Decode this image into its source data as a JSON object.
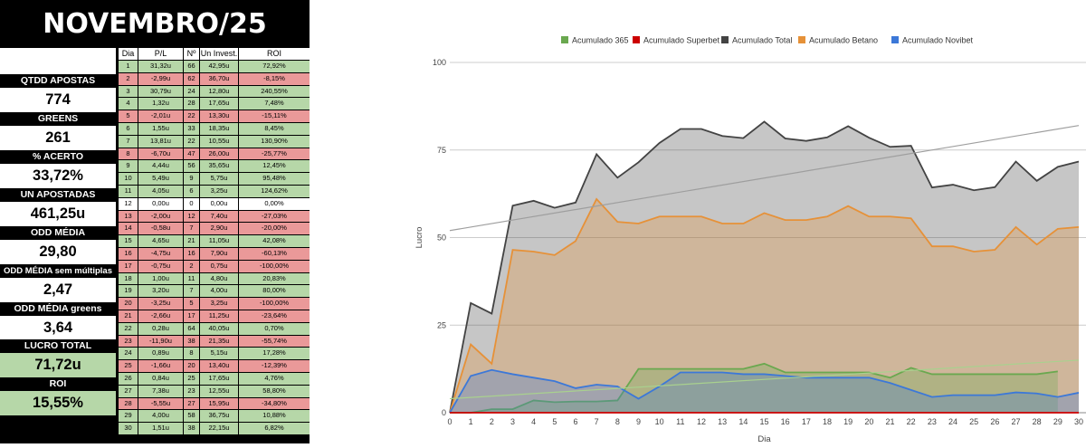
{
  "title": "NOVEMBRO/25",
  "stats": [
    {
      "label": "",
      "value": ""
    },
    {
      "label": "QTDD APOSTAS",
      "value": "774"
    },
    {
      "label": "GREENS",
      "value": "261"
    },
    {
      "label": "% ACERTO",
      "value": "33,72%"
    },
    {
      "label": "UN APOSTADAS",
      "value": "461,25u"
    },
    {
      "label": "ODD MÉDIA",
      "value": "29,80"
    },
    {
      "label": "ODD MÉDIA sem múltiplas",
      "value": "2,47"
    },
    {
      "label": "ODD MÉDIA greens",
      "value": "3,64"
    },
    {
      "label": "LUCRO TOTAL",
      "value": "71,72u"
    },
    {
      "label": "ROI",
      "value": "15,55%"
    }
  ],
  "table": {
    "headers": [
      "Dia",
      "P/L",
      "Nº",
      "Un Invest.",
      "ROI"
    ],
    "rows": [
      [
        "1",
        "31,32u",
        "66",
        "42,95u",
        "72,92%"
      ],
      [
        "2",
        "-2,99u",
        "62",
        "36,70u",
        "-8,15%"
      ],
      [
        "3",
        "30,79u",
        "24",
        "12,80u",
        "240,55%"
      ],
      [
        "4",
        "1,32u",
        "28",
        "17,65u",
        "7,48%"
      ],
      [
        "5",
        "-2,01u",
        "22",
        "13,30u",
        "-15,11%"
      ],
      [
        "6",
        "1,55u",
        "33",
        "18,35u",
        "8,45%"
      ],
      [
        "7",
        "13,81u",
        "22",
        "10,55u",
        "130,90%"
      ],
      [
        "8",
        "-6,70u",
        "47",
        "26,00u",
        "-25,77%"
      ],
      [
        "9",
        "4,44u",
        "56",
        "35,65u",
        "12,45%"
      ],
      [
        "10",
        "5,49u",
        "9",
        "5,75u",
        "95,48%"
      ],
      [
        "11",
        "4,05u",
        "6",
        "3,25u",
        "124,62%"
      ],
      [
        "12",
        "0,00u",
        "0",
        "0,00u",
        "0,00%"
      ],
      [
        "13",
        "-2,00u",
        "12",
        "7,40u",
        "-27,03%"
      ],
      [
        "14",
        "-0,58u",
        "7",
        "2,90u",
        "-20,00%"
      ],
      [
        "15",
        "4,65u",
        "21",
        "11,05u",
        "42,08%"
      ],
      [
        "16",
        "-4,75u",
        "16",
        "7,90u",
        "-60,13%"
      ],
      [
        "17",
        "-0,75u",
        "2",
        "0,75u",
        "-100,00%"
      ],
      [
        "18",
        "1,00u",
        "11",
        "4,80u",
        "20,83%"
      ],
      [
        "19",
        "3,20u",
        "7",
        "4,00u",
        "80,00%"
      ],
      [
        "20",
        "-3,25u",
        "5",
        "3,25u",
        "-100,00%"
      ],
      [
        "21",
        "-2,66u",
        "17",
        "11,25u",
        "-23,64%"
      ],
      [
        "22",
        "0,28u",
        "64",
        "40,05u",
        "0,70%"
      ],
      [
        "23",
        "-11,90u",
        "38",
        "21,35u",
        "-55,74%"
      ],
      [
        "24",
        "0,89u",
        "8",
        "5,15u",
        "17,28%"
      ],
      [
        "25",
        "-1,66u",
        "20",
        "13,40u",
        "-12,39%"
      ],
      [
        "26",
        "0,84u",
        "25",
        "17,65u",
        "4,76%"
      ],
      [
        "27",
        "7,38u",
        "23",
        "12,55u",
        "58,80%"
      ],
      [
        "28",
        "-5,55u",
        "27",
        "15,95u",
        "-34,80%"
      ],
      [
        "29",
        "4,00u",
        "58",
        "36,75u",
        "10,88%"
      ],
      [
        "30",
        "1,51u",
        "38",
        "22,15u",
        "6,82%"
      ]
    ],
    "row_status": [
      "g",
      "r",
      "g",
      "g",
      "r",
      "g",
      "g",
      "r",
      "g",
      "g",
      "g",
      "w",
      "r",
      "r",
      "g",
      "r",
      "r",
      "g",
      "g",
      "r",
      "r",
      "g",
      "r",
      "g",
      "r",
      "g",
      "g",
      "r",
      "g",
      "g"
    ]
  },
  "colors": {
    "green_row": "#b6d7a8",
    "red_row": "#ea9999"
  },
  "chart_data": {
    "type": "area",
    "xlabel": "Dia",
    "ylabel": "Lucro",
    "x": [
      0,
      1,
      2,
      3,
      4,
      5,
      6,
      7,
      8,
      9,
      10,
      11,
      12,
      13,
      14,
      15,
      16,
      17,
      18,
      19,
      20,
      21,
      22,
      23,
      24,
      25,
      26,
      27,
      28,
      29,
      30
    ],
    "ylim": [
      0,
      100
    ],
    "yticks": [
      0,
      25,
      50,
      75,
      100
    ],
    "grid": true,
    "legend_position": "top",
    "series": [
      {
        "name": "Acumulado 365",
        "color": "#6aa84f",
        "values": [
          0,
          0,
          1,
          1,
          3.5,
          3,
          3.2,
          3.2,
          3.5,
          12.5,
          12.5,
          12.5,
          12.5,
          12.5,
          12.5,
          14,
          11.5,
          11.5,
          11.5,
          11.5,
          11.5,
          10,
          12.8,
          11,
          11,
          11,
          11,
          11,
          11,
          11.8,
          null
        ]
      },
      {
        "name": "Acumulado Superbet",
        "color": "#cc0000",
        "values": [
          0,
          0,
          0,
          0,
          0,
          0,
          0,
          0,
          0,
          0,
          0,
          0,
          0,
          0,
          0,
          0,
          0,
          0,
          0,
          0,
          0,
          0,
          0,
          0,
          0,
          0,
          0,
          0,
          0,
          0,
          0
        ]
      },
      {
        "name": "Acumulado Total",
        "color": "#434343",
        "values": [
          0,
          31.3,
          28.3,
          59.1,
          60.5,
          58.5,
          60,
          73.8,
          67.1,
          71.5,
          77,
          81,
          81,
          79,
          78.4,
          83.1,
          78.3,
          77.6,
          78.6,
          81.8,
          78.5,
          75.9,
          76.2,
          64.3,
          65.1,
          63.5,
          64.4,
          71.7,
          66.2,
          70.2,
          71.7
        ]
      },
      {
        "name": "Acumulado Betano",
        "color": "#e69138",
        "values": [
          0,
          19.5,
          14,
          46.5,
          46,
          45,
          49,
          61,
          54.5,
          54,
          56,
          56,
          56,
          54,
          54,
          57,
          55,
          55,
          56,
          59,
          56,
          56,
          55.5,
          47.5,
          47.5,
          46,
          46.5,
          53,
          48,
          52.5,
          53
        ]
      },
      {
        "name": "Acumulado Novibet",
        "color": "#3c78d8",
        "values": [
          0,
          10.5,
          12.2,
          11,
          10,
          9,
          7,
          8,
          7.5,
          4,
          7.5,
          11.5,
          11.5,
          11.5,
          11,
          11,
          10.5,
          10,
          10,
          10,
          10,
          8.5,
          6.5,
          4.5,
          5,
          5,
          5,
          5.8,
          5.5,
          4.5,
          5.7
        ]
      }
    ],
    "trendline_total": [
      52,
      82
    ],
    "trendline_365": [
      4,
      15
    ]
  }
}
